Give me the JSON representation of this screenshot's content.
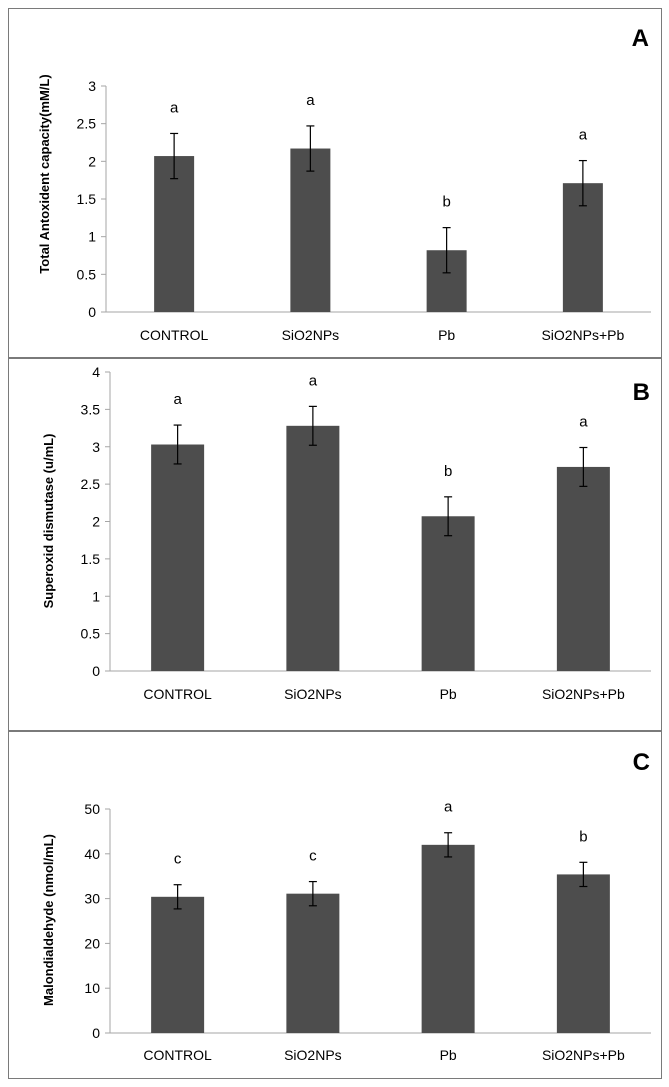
{
  "colors": {
    "bar": "#4d4d4d",
    "axis": "#a6a6a6",
    "border": "#7a7a7a",
    "text": "#000000"
  },
  "chart_data": [
    {
      "type": "bar",
      "panel_label": "A",
      "categories": [
        "CONTROL",
        "SiO2NPs",
        "Pb",
        "SiO2NPs+Pb"
      ],
      "values": [
        2.07,
        2.17,
        0.82,
        1.71
      ],
      "errors": [
        0.3,
        0.3,
        0.3,
        0.3
      ],
      "significance": [
        "a",
        "a",
        "b",
        "a"
      ],
      "ylabel": "Total Antoxident capacity(mM/L)",
      "ylim": [
        0,
        3
      ],
      "yticks": [
        "0",
        "0.5",
        "1",
        "1.5",
        "2",
        "2.5",
        "3"
      ],
      "ytick_values": [
        0,
        0.5,
        1,
        1.5,
        2,
        2.5,
        3
      ],
      "grid": false
    },
    {
      "type": "bar",
      "panel_label": "B",
      "categories": [
        "CONTROL",
        "SiO2NPs",
        "Pb",
        "SiO2NPs+Pb"
      ],
      "values": [
        3.03,
        3.28,
        2.07,
        2.73
      ],
      "errors": [
        0.26,
        0.26,
        0.26,
        0.26
      ],
      "significance": [
        "a",
        "a",
        "b",
        "a"
      ],
      "ylabel": "Superoxid dismutase (u/mL)",
      "ylim": [
        0,
        4
      ],
      "yticks": [
        "0",
        "0.5",
        "1",
        "1.5",
        "2",
        "2.5",
        "3",
        "3.5",
        "4"
      ],
      "ytick_values": [
        0,
        0.5,
        1,
        1.5,
        2,
        2.5,
        3,
        3.5,
        4
      ],
      "grid": false
    },
    {
      "type": "bar",
      "panel_label": "C",
      "categories": [
        "CONTROL",
        "SiO2NPs",
        "Pb",
        "SiO2NPs+Pb"
      ],
      "values": [
        30.4,
        31.1,
        42.0,
        35.4
      ],
      "errors": [
        2.7,
        2.7,
        2.7,
        2.7
      ],
      "significance": [
        "c",
        "c",
        "a",
        "b"
      ],
      "ylabel": "Malondialdehyde (nmol/mL)",
      "ylim": [
        0,
        50
      ],
      "yticks": [
        "0",
        "10",
        "20",
        "30",
        "40",
        "50"
      ],
      "ytick_values": [
        0,
        10,
        20,
        30,
        40,
        50
      ],
      "grid": false
    }
  ]
}
